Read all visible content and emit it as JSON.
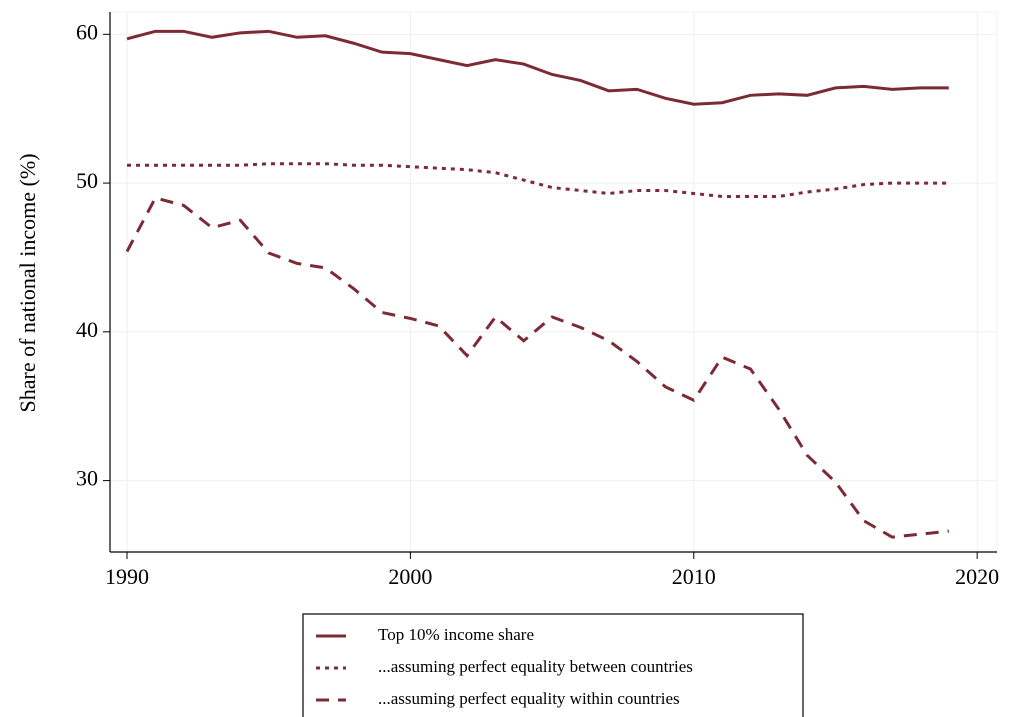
{
  "chart_data": {
    "type": "line",
    "y_label": "Share of national income (%)",
    "x": [
      1990,
      1991,
      1992,
      1993,
      1994,
      1995,
      1996,
      1997,
      1998,
      1999,
      2000,
      2001,
      2002,
      2003,
      2004,
      2005,
      2006,
      2007,
      2008,
      2009,
      2010,
      2011,
      2012,
      2013,
      2014,
      2015,
      2016,
      2017,
      2018,
      2019
    ],
    "series": [
      {
        "name": "Top 10% income share",
        "color": "#7c2a36",
        "dash": "solid",
        "values": [
          59.7,
          60.2,
          60.2,
          59.8,
          60.1,
          60.2,
          59.8,
          59.9,
          59.4,
          58.8,
          58.7,
          58.3,
          57.9,
          58.3,
          58.0,
          57.3,
          56.9,
          56.2,
          56.3,
          55.7,
          55.3,
          55.4,
          55.9,
          56.0,
          55.9,
          56.4,
          56.5,
          56.3,
          56.4,
          56.4
        ]
      },
      {
        "name": "...assuming perfect equality between countries",
        "color": "#7c2a36",
        "dash": "dotted",
        "values": [
          51.2,
          51.2,
          51.2,
          51.2,
          51.2,
          51.3,
          51.3,
          51.3,
          51.2,
          51.2,
          51.1,
          51.0,
          50.9,
          50.7,
          50.2,
          49.7,
          49.5,
          49.3,
          49.5,
          49.5,
          49.3,
          49.1,
          49.1,
          49.1,
          49.4,
          49.6,
          49.9,
          50.0,
          50.0,
          50.0
        ]
      },
      {
        "name": "...assuming perfect equality within countries",
        "color": "#7c2a36",
        "dash": "dashed",
        "values": [
          45.4,
          49.0,
          48.5,
          47.0,
          47.5,
          45.3,
          44.6,
          44.3,
          42.9,
          41.3,
          40.9,
          40.4,
          38.4,
          41.0,
          39.4,
          41.0,
          40.3,
          39.4,
          38.0,
          36.3,
          35.4,
          38.3,
          37.5,
          34.8,
          31.7,
          29.9,
          27.3,
          26.2,
          26.4,
          26.6
        ]
      }
    ],
    "xlim": [
      1989.4,
      2020.7
    ],
    "xticks": [
      1990,
      2000,
      2010,
      2020
    ],
    "ylim": [
      25.2,
      61.5
    ],
    "yticks": [
      30,
      40,
      50,
      60
    ],
    "grid": true,
    "legend": "bottom"
  }
}
